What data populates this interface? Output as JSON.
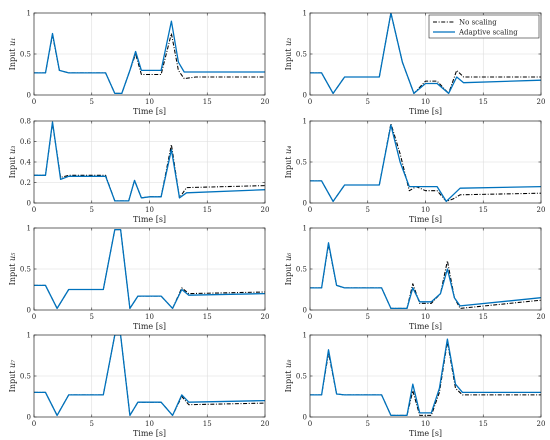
{
  "figure": {
    "legend": {
      "placement": "top-right of the second panel",
      "entries": [
        {
          "name": "No scaling",
          "color": "#000000",
          "dash": "dash-dot"
        },
        {
          "name": "Adaptive scaling",
          "color": "#0072BD",
          "dash": "solid"
        }
      ]
    },
    "grid": true
  },
  "chart_data": [
    {
      "type": "line",
      "panel": 1,
      "ylabel_text": "Input ",
      "ylabel_sub": "u₁",
      "xlabel": "Time [s]",
      "xlim": [
        0,
        20
      ],
      "ylim": [
        0,
        1
      ],
      "xticks": [
        0,
        5,
        10,
        15,
        20
      ],
      "yticks": [
        0,
        0.5,
        1
      ],
      "xtick_labels": [
        "0",
        "5",
        "10",
        "15",
        "20"
      ],
      "ytick_labels": [
        "0",
        "0.5",
        "1"
      ],
      "series": [
        {
          "name": "No scaling",
          "x": [
            0,
            1,
            1.6,
            2.2,
            3,
            6.2,
            7,
            7.6,
            8.3,
            8.8,
            9.3,
            10,
            11,
            11.9,
            12.5,
            13,
            14,
            20
          ],
          "y": [
            0.27,
            0.27,
            0.73,
            0.3,
            0.27,
            0.27,
            0.02,
            0.02,
            0.3,
            0.5,
            0.25,
            0.25,
            0.25,
            0.75,
            0.3,
            0.2,
            0.22,
            0.22
          ]
        },
        {
          "name": "Adaptive scaling",
          "x": [
            0,
            1,
            1.6,
            2.2,
            3,
            6.2,
            7,
            7.6,
            8.3,
            8.8,
            9.3,
            10,
            11,
            11.9,
            12.5,
            13,
            14,
            20
          ],
          "y": [
            0.27,
            0.27,
            0.75,
            0.3,
            0.27,
            0.27,
            0.02,
            0.02,
            0.3,
            0.53,
            0.3,
            0.3,
            0.3,
            0.9,
            0.4,
            0.28,
            0.28,
            0.28
          ]
        }
      ]
    },
    {
      "type": "line",
      "panel": 2,
      "ylabel_text": "Input ",
      "ylabel_sub": "u₂",
      "xlabel": "Time [s]",
      "xlim": [
        0,
        20
      ],
      "ylim": [
        0,
        1
      ],
      "xticks": [
        0,
        5,
        10,
        15,
        20
      ],
      "yticks": [
        0,
        0.5,
        1
      ],
      "xtick_labels": [
        "0",
        "5",
        "10",
        "15",
        "20"
      ],
      "ytick_labels": [
        "0",
        "0.5",
        "1"
      ],
      "series": [
        {
          "name": "No scaling",
          "x": [
            0,
            1,
            2,
            3,
            6,
            7,
            8,
            9,
            10,
            11,
            12,
            12.7,
            13.3,
            20
          ],
          "y": [
            0.27,
            0.27,
            0.02,
            0.22,
            0.22,
            1,
            0.4,
            0.02,
            0.17,
            0.17,
            0.02,
            0.3,
            0.22,
            0.22
          ]
        },
        {
          "name": "Adaptive scaling",
          "x": [
            0,
            1,
            2,
            3,
            6,
            7,
            8,
            9,
            10,
            11,
            12,
            12.7,
            13.3,
            20
          ],
          "y": [
            0.27,
            0.27,
            0.02,
            0.22,
            0.22,
            1,
            0.4,
            0.02,
            0.14,
            0.14,
            0.02,
            0.22,
            0.15,
            0.18
          ]
        }
      ]
    },
    {
      "type": "line",
      "panel": 3,
      "ylabel_text": "Input ",
      "ylabel_sub": "u₃",
      "xlabel": "Time [s]",
      "xlim": [
        0,
        20
      ],
      "ylim": [
        0,
        0.8
      ],
      "xticks": [
        0,
        5,
        10,
        15,
        20
      ],
      "yticks": [
        0,
        0.2,
        0.4,
        0.6,
        0.8
      ],
      "xtick_labels": [
        "0",
        "5",
        "10",
        "15",
        "20"
      ],
      "ytick_labels": [
        "0",
        "0.2",
        "0.4",
        "0.6",
        "0.8"
      ],
      "series": [
        {
          "name": "No scaling",
          "x": [
            0,
            1,
            1.6,
            2.3,
            3,
            6.2,
            7,
            8.2,
            8.7,
            9.3,
            10,
            11,
            11.9,
            12.6,
            13.2,
            20
          ],
          "y": [
            0.27,
            0.27,
            0.78,
            0.25,
            0.27,
            0.27,
            0.02,
            0.02,
            0.22,
            0.05,
            0.06,
            0.06,
            0.57,
            0.05,
            0.15,
            0.17
          ]
        },
        {
          "name": "Adaptive scaling",
          "x": [
            0,
            1,
            1.6,
            2.3,
            3,
            6.2,
            7,
            8.2,
            8.7,
            9.3,
            10,
            11,
            11.9,
            12.6,
            13.2,
            20
          ],
          "y": [
            0.27,
            0.27,
            0.79,
            0.23,
            0.26,
            0.26,
            0.02,
            0.02,
            0.22,
            0.05,
            0.06,
            0.06,
            0.52,
            0.05,
            0.1,
            0.13
          ]
        }
      ]
    },
    {
      "type": "line",
      "panel": 4,
      "ylabel_text": "Input ",
      "ylabel_sub": "u₄",
      "xlabel": "Time [s]",
      "xlim": [
        0,
        20
      ],
      "ylim": [
        0,
        1
      ],
      "xticks": [
        0,
        5,
        10,
        15,
        20
      ],
      "yticks": [
        0,
        0.5,
        1
      ],
      "xtick_labels": [
        "0",
        "5",
        "10",
        "15",
        "20"
      ],
      "ytick_labels": [
        "0",
        "0.5",
        "1"
      ],
      "series": [
        {
          "name": "No scaling",
          "x": [
            0,
            1,
            2,
            3,
            6,
            7,
            7.8,
            8.6,
            9.2,
            10,
            11,
            11.8,
            12.4,
            13,
            20
          ],
          "y": [
            0.27,
            0.27,
            0.02,
            0.22,
            0.22,
            0.97,
            0.6,
            0.15,
            0.2,
            0.15,
            0.15,
            0.02,
            0.05,
            0.1,
            0.12
          ]
        },
        {
          "name": "Adaptive scaling",
          "x": [
            0,
            1,
            2,
            3,
            6,
            7,
            7.8,
            8.6,
            9.2,
            10,
            11,
            11.8,
            12.4,
            13,
            20
          ],
          "y": [
            0.27,
            0.27,
            0.02,
            0.22,
            0.22,
            0.95,
            0.5,
            0.2,
            0.2,
            0.2,
            0.2,
            0.02,
            0.1,
            0.18,
            0.2
          ]
        }
      ]
    },
    {
      "type": "line",
      "panel": 5,
      "ylabel_text": "Input ",
      "ylabel_sub": "u₅",
      "xlabel": "Time [s]",
      "xlim": [
        0,
        20
      ],
      "ylim": [
        0,
        1
      ],
      "xticks": [
        0,
        5,
        10,
        15,
        20
      ],
      "yticks": [
        0,
        0.5,
        1
      ],
      "xtick_labels": [
        "0",
        "5",
        "10",
        "15",
        "20"
      ],
      "ytick_labels": [
        "0",
        "0.5",
        "1"
      ],
      "series": [
        {
          "name": "No scaling",
          "x": [
            0,
            1,
            2,
            3,
            6,
            7,
            7.5,
            8.3,
            9,
            10,
            11,
            12,
            12.8,
            13.4,
            20
          ],
          "y": [
            0.3,
            0.3,
            0.02,
            0.25,
            0.25,
            0.98,
            0.98,
            0.02,
            0.17,
            0.17,
            0.17,
            0.02,
            0.27,
            0.2,
            0.22
          ]
        },
        {
          "name": "Adaptive scaling",
          "x": [
            0,
            1,
            2,
            3,
            6,
            7,
            7.5,
            8.3,
            9,
            10,
            11,
            12,
            12.8,
            13.4,
            20
          ],
          "y": [
            0.3,
            0.3,
            0.02,
            0.25,
            0.25,
            0.98,
            0.98,
            0.02,
            0.17,
            0.17,
            0.17,
            0.02,
            0.25,
            0.18,
            0.2
          ]
        }
      ]
    },
    {
      "type": "line",
      "panel": 6,
      "ylabel_text": "Input ",
      "ylabel_sub": "u₆",
      "xlabel": "Time [s]",
      "xlim": [
        0,
        20
      ],
      "ylim": [
        0,
        1
      ],
      "xticks": [
        0,
        5,
        10,
        15,
        20
      ],
      "yticks": [
        0,
        0.5,
        1
      ],
      "xtick_labels": [
        "0",
        "5",
        "10",
        "15",
        "20"
      ],
      "ytick_labels": [
        "0",
        "0.5",
        "1"
      ],
      "series": [
        {
          "name": "No scaling",
          "x": [
            0,
            1,
            1.6,
            2.3,
            3,
            6.2,
            7,
            7.6,
            8.4,
            8.9,
            9.5,
            10.5,
            11.3,
            11.9,
            12.5,
            13,
            20
          ],
          "y": [
            0.27,
            0.27,
            0.8,
            0.3,
            0.27,
            0.27,
            0.02,
            0.02,
            0.02,
            0.32,
            0.08,
            0.08,
            0.2,
            0.6,
            0.15,
            0.02,
            0.12
          ]
        },
        {
          "name": "Adaptive scaling",
          "x": [
            0,
            1,
            1.6,
            2.3,
            3,
            6.2,
            7,
            7.6,
            8.4,
            8.9,
            9.5,
            10.5,
            11.3,
            11.9,
            12.5,
            13,
            20
          ],
          "y": [
            0.27,
            0.27,
            0.82,
            0.3,
            0.27,
            0.27,
            0.02,
            0.02,
            0.02,
            0.27,
            0.1,
            0.1,
            0.2,
            0.5,
            0.15,
            0.05,
            0.15
          ]
        }
      ]
    },
    {
      "type": "line",
      "panel": 7,
      "ylabel_text": "Input ",
      "ylabel_sub": "u₇",
      "xlabel": "Time [s]",
      "xlim": [
        0,
        20
      ],
      "ylim": [
        0,
        1
      ],
      "xticks": [
        0,
        5,
        10,
        15,
        20
      ],
      "yticks": [
        0,
        0.5,
        1
      ],
      "xtick_labels": [
        "0",
        "5",
        "10",
        "15",
        "20"
      ],
      "ytick_labels": [
        "0",
        "0.5",
        "1"
      ],
      "series": [
        {
          "name": "No scaling",
          "x": [
            0,
            1,
            2,
            3,
            6,
            7,
            7.5,
            8.3,
            9,
            10,
            11,
            12,
            12.8,
            13.4,
            20
          ],
          "y": [
            0.3,
            0.3,
            0.02,
            0.27,
            0.27,
            1,
            1,
            0.02,
            0.18,
            0.18,
            0.18,
            0.02,
            0.25,
            0.15,
            0.17
          ]
        },
        {
          "name": "Adaptive scaling",
          "x": [
            0,
            1,
            2,
            3,
            6,
            7,
            7.5,
            8.3,
            9,
            10,
            11,
            12,
            12.8,
            13.4,
            20
          ],
          "y": [
            0.3,
            0.3,
            0.02,
            0.27,
            0.27,
            1,
            1,
            0.02,
            0.18,
            0.18,
            0.18,
            0.02,
            0.27,
            0.18,
            0.2
          ]
        }
      ]
    },
    {
      "type": "line",
      "panel": 8,
      "ylabel_text": "Input ",
      "ylabel_sub": "u₈",
      "xlabel": "Time [s]",
      "xlim": [
        0,
        20
      ],
      "ylim": [
        0,
        1
      ],
      "xticks": [
        0,
        5,
        10,
        15,
        20
      ],
      "yticks": [
        0,
        0.5,
        1
      ],
      "xtick_labels": [
        "0",
        "5",
        "10",
        "15",
        "20"
      ],
      "ytick_labels": [
        "0",
        "0.5",
        "1"
      ],
      "series": [
        {
          "name": "No scaling",
          "x": [
            0,
            1,
            1.6,
            2.3,
            3,
            6.2,
            7,
            7.6,
            8.4,
            8.9,
            9.5,
            10.5,
            11.2,
            11.9,
            12.6,
            13.2,
            20
          ],
          "y": [
            0.27,
            0.27,
            0.78,
            0.28,
            0.27,
            0.27,
            0.02,
            0.02,
            0.02,
            0.32,
            0.02,
            0.02,
            0.3,
            0.92,
            0.35,
            0.27,
            0.27
          ]
        },
        {
          "name": "Adaptive scaling",
          "x": [
            0,
            1,
            1.6,
            2.3,
            3,
            6.2,
            7,
            7.6,
            8.4,
            8.9,
            9.5,
            10.5,
            11.2,
            11.9,
            12.6,
            13.2,
            20
          ],
          "y": [
            0.27,
            0.27,
            0.82,
            0.28,
            0.27,
            0.27,
            0.02,
            0.02,
            0.02,
            0.4,
            0.05,
            0.05,
            0.35,
            0.95,
            0.4,
            0.3,
            0.3
          ]
        }
      ]
    }
  ]
}
